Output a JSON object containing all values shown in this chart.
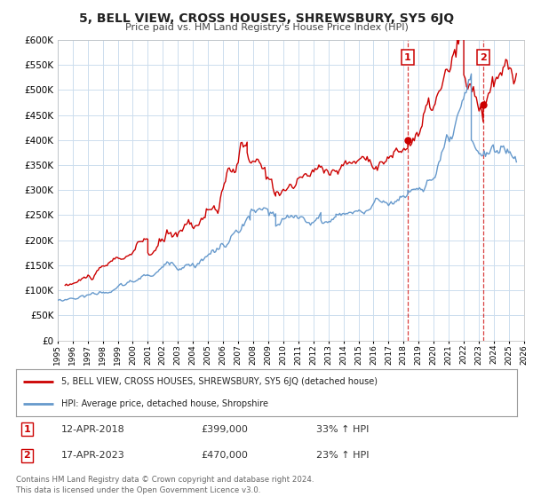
{
  "title": "5, BELL VIEW, CROSS HOUSES, SHREWSBURY, SY5 6JQ",
  "subtitle": "Price paid vs. HM Land Registry's House Price Index (HPI)",
  "legend_line1": "5, BELL VIEW, CROSS HOUSES, SHREWSBURY, SY5 6JQ (detached house)",
  "legend_line2": "HPI: Average price, detached house, Shropshire",
  "annotation1_date": "12-APR-2018",
  "annotation1_price": "£399,000",
  "annotation1_hpi": "33% ↑ HPI",
  "annotation1_year": 2018.28,
  "annotation1_value": 399000,
  "annotation2_date": "17-APR-2023",
  "annotation2_price": "£470,000",
  "annotation2_hpi": "23% ↑ HPI",
  "annotation2_year": 2023.29,
  "annotation2_value": 470000,
  "red_line_color": "#cc0000",
  "blue_line_color": "#6699cc",
  "background_color": "#ffffff",
  "grid_color": "#ccddee",
  "footnote": "Contains HM Land Registry data © Crown copyright and database right 2024.\nThis data is licensed under the Open Government Licence v3.0.",
  "xmin": 1995,
  "xmax": 2026,
  "ymin": 0,
  "ymax": 600000,
  "yticks": [
    0,
    50000,
    100000,
    150000,
    200000,
    250000,
    300000,
    350000,
    400000,
    450000,
    500000,
    550000,
    600000
  ]
}
